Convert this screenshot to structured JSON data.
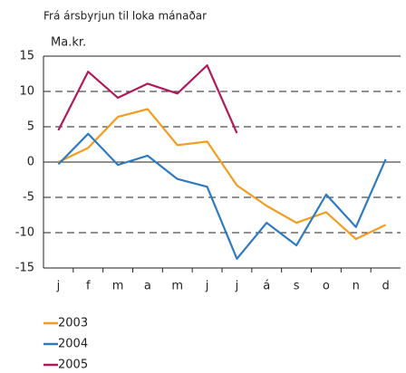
{
  "chart_data": {
    "type": "line",
    "title": "Frá ársbyrjun til loka mánaðar",
    "y_label": "Ma.kr.",
    "categories": [
      "j",
      "f",
      "m",
      "a",
      "m",
      "j",
      "j",
      "á",
      "s",
      "o",
      "n",
      "d"
    ],
    "series": [
      {
        "name": "2003",
        "color": "#f39c1f",
        "values": [
          0,
          2,
          6.4,
          7.5,
          2.4,
          2.9,
          -3.3,
          -6.2,
          -8.6,
          -7.1,
          -10.9,
          -8.9
        ]
      },
      {
        "name": "2004",
        "color": "#2f7ac0",
        "values": [
          -0.3,
          4,
          -0.4,
          0.9,
          -2.4,
          -3.5,
          -13.7,
          -8.6,
          -11.8,
          -4.6,
          -9.2,
          0.4
        ]
      },
      {
        "name": "2005",
        "color": "#b0195e",
        "values": [
          4.5,
          12.8,
          9.1,
          11.1,
          9.7,
          13.7,
          4.1,
          null,
          null,
          null,
          null,
          null
        ]
      }
    ],
    "ylim": [
      -15,
      15
    ],
    "yticks": [
      15,
      10,
      5,
      0,
      -5,
      -10,
      -15
    ],
    "grid": true
  }
}
